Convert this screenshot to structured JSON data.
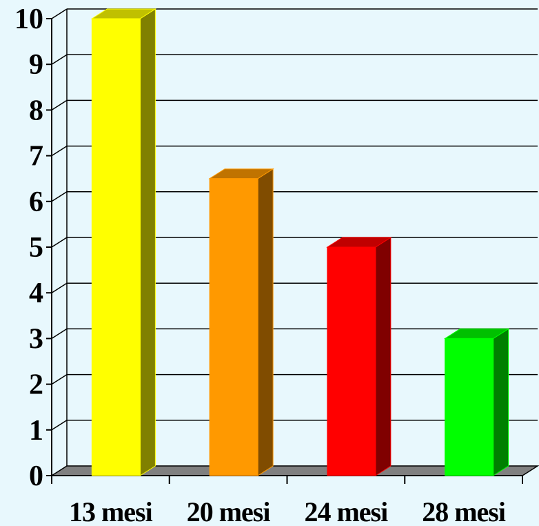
{
  "chart_data": {
    "type": "bar",
    "categories": [
      "13 mesi",
      "20 mesi",
      "24 mesi",
      "28 mesi"
    ],
    "values": [
      10,
      6.5,
      5,
      3
    ],
    "ylim": [
      0,
      10
    ],
    "yticks": [
      "0",
      "1",
      "2",
      "3",
      "4",
      "5",
      "6",
      "7",
      "8",
      "9",
      "10"
    ],
    "grid": true,
    "title": "",
    "xlabel": "",
    "ylabel": "",
    "colors": {
      "background": "#e8f8fd",
      "floor": "#808080",
      "bars": [
        {
          "front": "#ffff00",
          "side": "#808000",
          "top": "#c0c000"
        },
        {
          "front": "#ff9900",
          "side": "#804c00",
          "top": "#c07300"
        },
        {
          "front": "#ff0000",
          "side": "#800000",
          "top": "#c00000"
        },
        {
          "front": "#00ff00",
          "side": "#008000",
          "top": "#00c000"
        }
      ]
    }
  }
}
